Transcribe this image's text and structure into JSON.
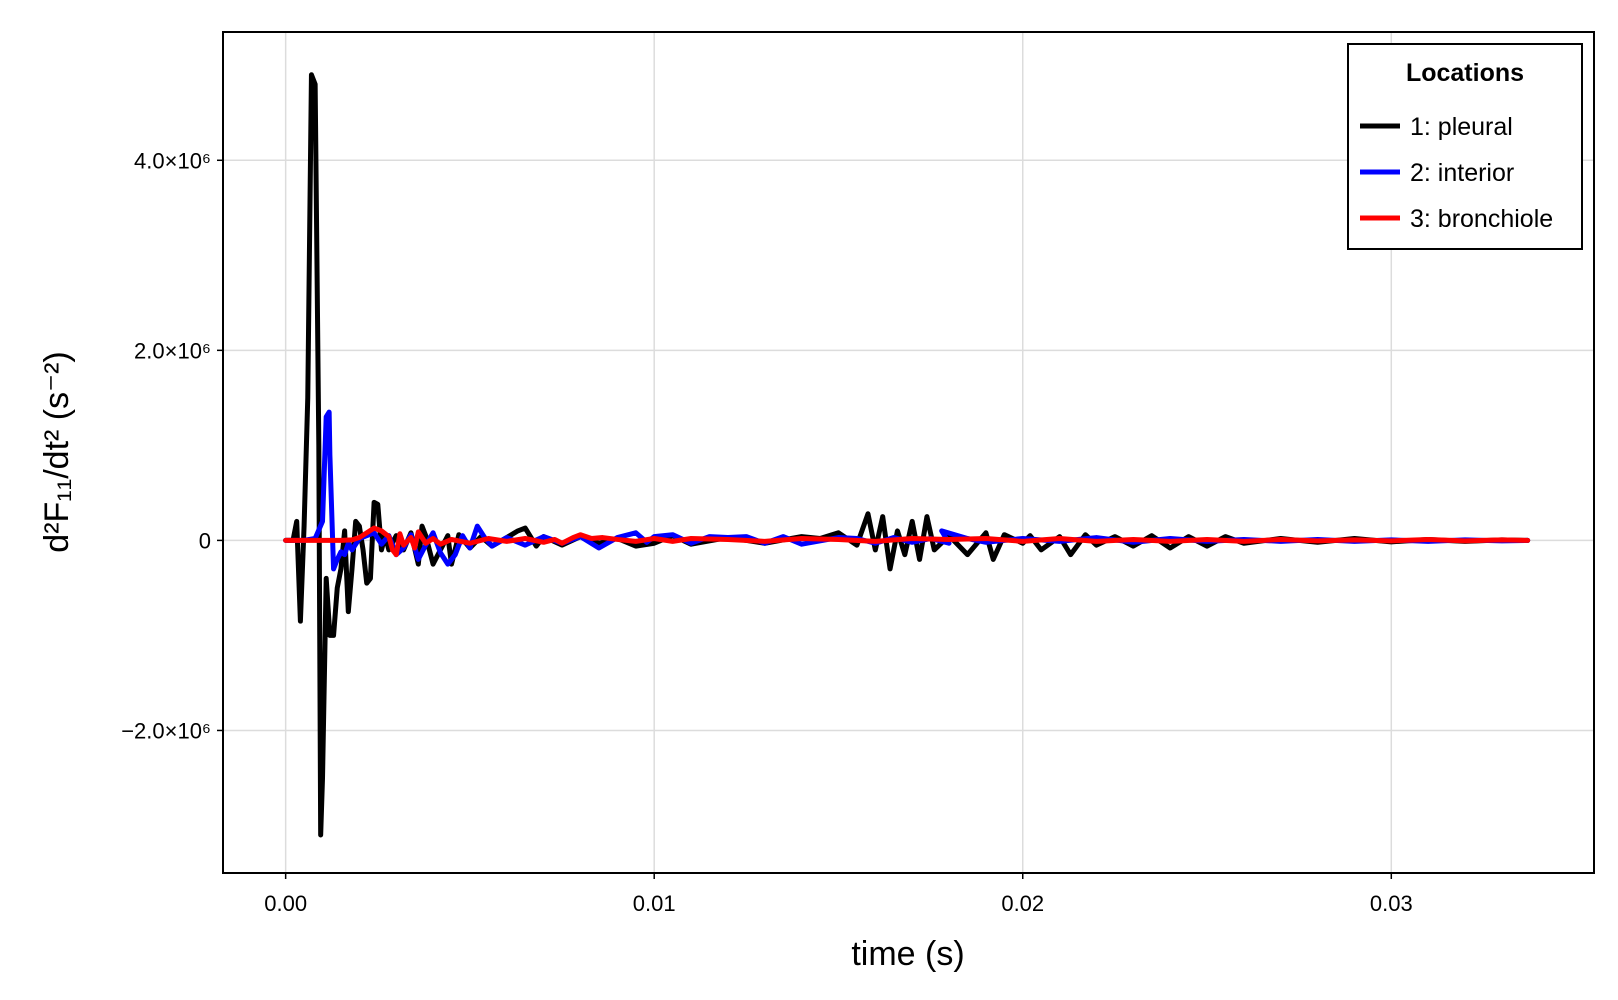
{
  "chart_data": {
    "type": "line",
    "xlabel": "time (s)",
    "ylabel": "d²F₁₁/dt² (s⁻²)",
    "xlim": [
      -0.0017,
      0.0355
    ],
    "ylim": [
      -3500000,
      5350000
    ],
    "x_ticks": [
      {
        "value": 0.0,
        "label": "0.00"
      },
      {
        "value": 0.01,
        "label": "0.01"
      },
      {
        "value": 0.02,
        "label": "0.02"
      },
      {
        "value": 0.03,
        "label": "0.03"
      }
    ],
    "y_ticks": [
      {
        "value": -2000000,
        "label": "−2.0×10⁶"
      },
      {
        "value": 0,
        "label": "0"
      },
      {
        "value": 2000000,
        "label": "2.0×10⁶"
      },
      {
        "value": 4000000,
        "label": "4.0×10⁶"
      }
    ],
    "grid": true,
    "legend": {
      "title": "Locations",
      "position": "top-right"
    },
    "series": [
      {
        "name": "1: pleural",
        "color": "#000000",
        "points": [
          [
            0.0,
            0
          ],
          [
            0.0002,
            0
          ],
          [
            0.0003,
            200000
          ],
          [
            0.0004,
            -850000
          ],
          [
            0.0005,
            150000
          ],
          [
            0.0006,
            1500000
          ],
          [
            0.0007,
            4900000
          ],
          [
            0.0008,
            4800000
          ],
          [
            0.0009,
            1000000
          ],
          [
            0.00095,
            -3100000
          ],
          [
            0.001,
            -2500000
          ],
          [
            0.0011,
            -400000
          ],
          [
            0.0012,
            -1000000
          ],
          [
            0.0013,
            -1000000
          ],
          [
            0.0014,
            -500000
          ],
          [
            0.0015,
            -300000
          ],
          [
            0.0016,
            100000
          ],
          [
            0.0017,
            -750000
          ],
          [
            0.0018,
            -300000
          ],
          [
            0.0019,
            200000
          ],
          [
            0.002,
            150000
          ],
          [
            0.0021,
            -100000
          ],
          [
            0.0022,
            -450000
          ],
          [
            0.0023,
            -400000
          ],
          [
            0.0024,
            400000
          ],
          [
            0.0025,
            380000
          ],
          [
            0.0026,
            -100000
          ],
          [
            0.0027,
            50000
          ],
          [
            0.0028,
            -100000
          ],
          [
            0.003,
            50000
          ],
          [
            0.0032,
            -100000
          ],
          [
            0.0034,
            80000
          ],
          [
            0.0036,
            -250000
          ],
          [
            0.0037,
            150000
          ],
          [
            0.0038,
            50000
          ],
          [
            0.004,
            -250000
          ],
          [
            0.0042,
            -100000
          ],
          [
            0.0044,
            50000
          ],
          [
            0.0045,
            -250000
          ],
          [
            0.0047,
            60000
          ],
          [
            0.005,
            -80000
          ],
          [
            0.0053,
            40000
          ],
          [
            0.0056,
            -60000
          ],
          [
            0.006,
            30000
          ],
          [
            0.0063,
            100000
          ],
          [
            0.0065,
            130000
          ],
          [
            0.0068,
            -60000
          ],
          [
            0.007,
            40000
          ],
          [
            0.0075,
            -50000
          ],
          [
            0.008,
            40000
          ],
          [
            0.0085,
            -30000
          ],
          [
            0.009,
            20000
          ],
          [
            0.0095,
            -60000
          ],
          [
            0.01,
            -30000
          ],
          [
            0.0105,
            50000
          ],
          [
            0.011,
            -40000
          ],
          [
            0.012,
            30000
          ],
          [
            0.013,
            -30000
          ],
          [
            0.014,
            40000
          ],
          [
            0.0145,
            20000
          ],
          [
            0.015,
            80000
          ],
          [
            0.0155,
            -50000
          ],
          [
            0.0158,
            280000
          ],
          [
            0.016,
            -100000
          ],
          [
            0.0162,
            250000
          ],
          [
            0.0164,
            -300000
          ],
          [
            0.0166,
            100000
          ],
          [
            0.0168,
            -150000
          ],
          [
            0.017,
            200000
          ],
          [
            0.0172,
            -200000
          ],
          [
            0.0174,
            250000
          ],
          [
            0.0176,
            -100000
          ],
          [
            0.018,
            50000
          ],
          [
            0.0185,
            -150000
          ],
          [
            0.019,
            80000
          ],
          [
            0.0192,
            -200000
          ],
          [
            0.0195,
            60000
          ],
          [
            0.02,
            -30000
          ],
          [
            0.0202,
            50000
          ],
          [
            0.0205,
            -100000
          ],
          [
            0.021,
            40000
          ],
          [
            0.0213,
            -150000
          ],
          [
            0.0217,
            60000
          ],
          [
            0.022,
            -50000
          ],
          [
            0.0225,
            40000
          ],
          [
            0.023,
            -60000
          ],
          [
            0.0235,
            50000
          ],
          [
            0.024,
            -80000
          ],
          [
            0.0245,
            40000
          ],
          [
            0.025,
            -60000
          ],
          [
            0.0255,
            40000
          ],
          [
            0.026,
            -30000
          ],
          [
            0.027,
            20000
          ],
          [
            0.028,
            -20000
          ],
          [
            0.029,
            20000
          ],
          [
            0.03,
            -15000
          ],
          [
            0.031,
            10000
          ],
          [
            0.032,
            -10000
          ],
          [
            0.033,
            5000
          ],
          [
            0.0337,
            0
          ]
        ]
      },
      {
        "name": "2: interior",
        "color": "#0000ff",
        "points": [
          [
            0.0,
            0
          ],
          [
            0.0005,
            0
          ],
          [
            0.0008,
            20000
          ],
          [
            0.001,
            200000
          ],
          [
            0.0011,
            1300000
          ],
          [
            0.00118,
            1350000
          ],
          [
            0.0012,
            900000
          ],
          [
            0.0013,
            -300000
          ],
          [
            0.0014,
            -200000
          ],
          [
            0.0015,
            -120000
          ],
          [
            0.0016,
            -150000
          ],
          [
            0.0017,
            -30000
          ],
          [
            0.0018,
            -100000
          ],
          [
            0.002,
            20000
          ],
          [
            0.0022,
            50000
          ],
          [
            0.0024,
            80000
          ],
          [
            0.0026,
            -40000
          ],
          [
            0.0028,
            50000
          ],
          [
            0.003,
            -150000
          ],
          [
            0.0032,
            -80000
          ],
          [
            0.0034,
            60000
          ],
          [
            0.0036,
            -200000
          ],
          [
            0.0038,
            -50000
          ],
          [
            0.004,
            80000
          ],
          [
            0.0042,
            -130000
          ],
          [
            0.0044,
            -250000
          ],
          [
            0.0046,
            -150000
          ],
          [
            0.0048,
            50000
          ],
          [
            0.005,
            -80000
          ],
          [
            0.0052,
            150000
          ],
          [
            0.0054,
            30000
          ],
          [
            0.0056,
            -60000
          ],
          [
            0.006,
            30000
          ],
          [
            0.0065,
            -50000
          ],
          [
            0.007,
            40000
          ],
          [
            0.0075,
            -30000
          ],
          [
            0.008,
            40000
          ],
          [
            0.0085,
            -80000
          ],
          [
            0.009,
            30000
          ],
          [
            0.0095,
            80000
          ],
          [
            0.0098,
            -20000
          ],
          [
            0.01,
            40000
          ],
          [
            0.0105,
            60000
          ],
          [
            0.011,
            -30000
          ],
          [
            0.0115,
            40000
          ],
          [
            0.012,
            30000
          ],
          [
            0.0125,
            40000
          ],
          [
            0.013,
            -30000
          ],
          [
            0.0135,
            40000
          ],
          [
            0.014,
            -40000
          ],
          [
            0.015,
            30000
          ],
          [
            0.0155,
            20000
          ],
          [
            0.016,
            -30000
          ],
          [
            0.0165,
            30000
          ],
          [
            0.017,
            -20000
          ],
          [
            0.0175,
            20000
          ],
          [
            0.018,
            -30000
          ],
          [
            0.0178,
            100000
          ],
          [
            0.0185,
            20000
          ],
          [
            0.019,
            -20000
          ],
          [
            0.02,
            20000
          ],
          [
            0.021,
            -10000
          ],
          [
            0.022,
            30000
          ],
          [
            0.023,
            -20000
          ],
          [
            0.024,
            20000
          ],
          [
            0.025,
            -10000
          ],
          [
            0.026,
            10000
          ],
          [
            0.027,
            -10000
          ],
          [
            0.028,
            10000
          ],
          [
            0.029,
            -10000
          ],
          [
            0.03,
            5000
          ],
          [
            0.031,
            -10000
          ],
          [
            0.032,
            5000
          ],
          [
            0.033,
            -5000
          ],
          [
            0.0337,
            0
          ]
        ]
      },
      {
        "name": "3: bronchiole",
        "color": "#ff0000",
        "points": [
          [
            0.0,
            0
          ],
          [
            0.0005,
            0
          ],
          [
            0.001,
            0
          ],
          [
            0.0015,
            0
          ],
          [
            0.0018,
            5000
          ],
          [
            0.002,
            30000
          ],
          [
            0.0022,
            80000
          ],
          [
            0.0024,
            130000
          ],
          [
            0.0026,
            100000
          ],
          [
            0.0028,
            40000
          ],
          [
            0.0029,
            -100000
          ],
          [
            0.003,
            -150000
          ],
          [
            0.0031,
            70000
          ],
          [
            0.0032,
            -50000
          ],
          [
            0.0034,
            30000
          ],
          [
            0.0035,
            -80000
          ],
          [
            0.0036,
            90000
          ],
          [
            0.0038,
            -30000
          ],
          [
            0.004,
            20000
          ],
          [
            0.0042,
            -40000
          ],
          [
            0.0045,
            10000
          ],
          [
            0.005,
            -30000
          ],
          [
            0.0055,
            20000
          ],
          [
            0.006,
            -10000
          ],
          [
            0.0065,
            20000
          ],
          [
            0.007,
            -20000
          ],
          [
            0.0073,
            10000
          ],
          [
            0.0075,
            -30000
          ],
          [
            0.0078,
            30000
          ],
          [
            0.008,
            60000
          ],
          [
            0.0083,
            20000
          ],
          [
            0.0086,
            30000
          ],
          [
            0.009,
            10000
          ],
          [
            0.0095,
            -10000
          ],
          [
            0.01,
            20000
          ],
          [
            0.0105,
            -10000
          ],
          [
            0.011,
            20000
          ],
          [
            0.012,
            10000
          ],
          [
            0.013,
            -10000
          ],
          [
            0.014,
            20000
          ],
          [
            0.015,
            10000
          ],
          [
            0.016,
            -10000
          ],
          [
            0.017,
            20000
          ],
          [
            0.018,
            10000
          ],
          [
            0.019,
            20000
          ],
          [
            0.02,
            -10000
          ],
          [
            0.021,
            20000
          ],
          [
            0.022,
            -10000
          ],
          [
            0.023,
            10000
          ],
          [
            0.024,
            -10000
          ],
          [
            0.025,
            10000
          ],
          [
            0.026,
            -10000
          ],
          [
            0.027,
            10000
          ],
          [
            0.028,
            -5000
          ],
          [
            0.029,
            5000
          ],
          [
            0.03,
            -5000
          ],
          [
            0.031,
            10000
          ],
          [
            0.032,
            -5000
          ],
          [
            0.033,
            5000
          ],
          [
            0.0337,
            0
          ]
        ]
      }
    ]
  }
}
